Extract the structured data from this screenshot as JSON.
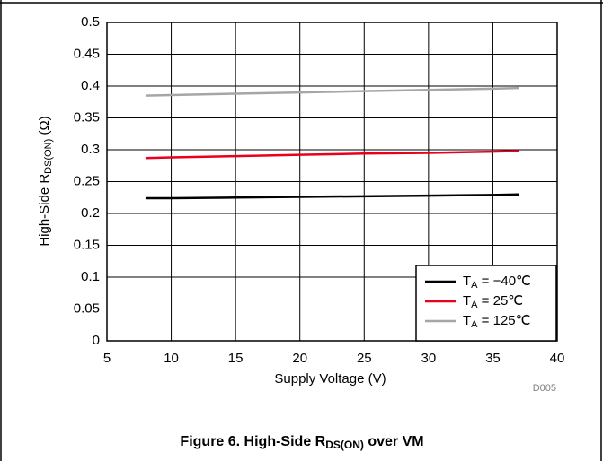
{
  "chart_data": {
    "type": "line",
    "title_parts": [
      "Figure 6. High-Side R",
      "DS(ON)",
      " over VM"
    ],
    "ylabel_parts": [
      "High-Side R",
      "DS(ON)",
      " (Ω)"
    ],
    "xlabel": "Supply Voltage (V)",
    "code": "D005",
    "xlim": [
      5,
      40
    ],
    "xticks": [
      5,
      10,
      15,
      20,
      25,
      30,
      35,
      40
    ],
    "ylim": [
      0,
      0.5
    ],
    "yticks": [
      0,
      0.05,
      0.1,
      0.15,
      0.2,
      0.25,
      0.3,
      0.35,
      0.4,
      0.45,
      0.5
    ],
    "grid": true,
    "legend": "lower-right",
    "x": [
      8,
      10,
      15,
      20,
      25,
      30,
      35,
      37
    ],
    "series": [
      {
        "name_parts": [
          "T",
          "A",
          " = −40℃"
        ],
        "color": "#000000",
        "values": [
          0.224,
          0.224,
          0.225,
          0.226,
          0.227,
          0.228,
          0.229,
          0.23
        ]
      },
      {
        "name_parts": [
          "T",
          "A",
          " = 25℃"
        ],
        "color": "#e8001c",
        "values": [
          0.287,
          0.288,
          0.29,
          0.292,
          0.294,
          0.295,
          0.297,
          0.298
        ]
      },
      {
        "name_parts": [
          "T",
          "A",
          " = 125℃"
        ],
        "color": "#a6a6a6",
        "values": [
          0.385,
          0.386,
          0.388,
          0.39,
          0.392,
          0.394,
          0.396,
          0.397
        ]
      }
    ]
  }
}
